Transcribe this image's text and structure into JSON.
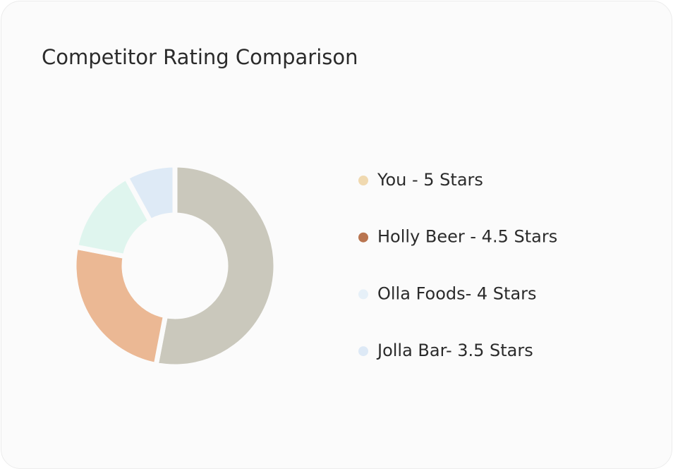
{
  "chart_data": {
    "type": "donut",
    "title": "Competitor Rating Comparison",
    "categories": [
      "You - 5 Stars",
      "Holly Beer - 4.5 Stars",
      "Olla Foods- 4 Stars",
      "Jolla Bar- 3.5 Stars"
    ],
    "values": [
      53,
      25,
      14,
      8
    ],
    "colors": [
      "#cac8bc",
      "#ebb894",
      "#dff5ee",
      "#deeaf6"
    ],
    "legend_colors": [
      "#f0d9b0",
      "#b97550",
      "#e6f0f8",
      "#dde9f6"
    ],
    "legend": "right"
  }
}
